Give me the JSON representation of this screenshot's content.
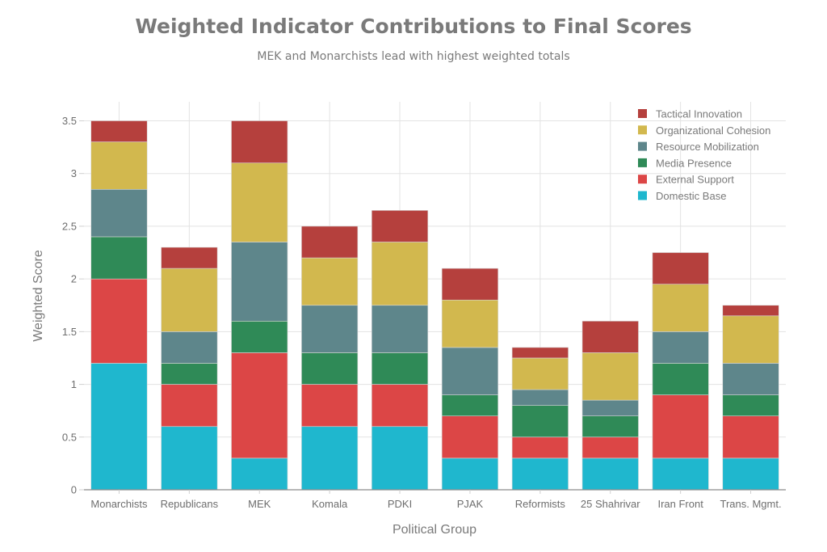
{
  "chart_data": {
    "type": "bar",
    "stacked": true,
    "title": "Weighted Indicator Contributions to Final Scores",
    "subtitle": "MEK and Monarchists lead with highest weighted totals",
    "xlabel": "Political Group",
    "ylabel": "Weighted Score",
    "ylim": [
      0,
      3.68
    ],
    "yticks": [
      0,
      0.5,
      1,
      1.5,
      2,
      2.5,
      3,
      3.5
    ],
    "ytick_labels": [
      "0",
      "0.5",
      "1",
      "1.5",
      "2",
      "2.5",
      "3",
      "3.5"
    ],
    "grid": true,
    "legend_position": "top-right",
    "categories": [
      "Monarchists",
      "Republicans",
      "MEK",
      "Komala",
      "PDKI",
      "PJAK",
      "Reformists",
      "25 Shahrivar",
      "Iran Front",
      "Trans. Mgmt."
    ],
    "series": [
      {
        "name": "Domestic Base",
        "color": "#1FB7CE",
        "values": [
          1.2,
          0.6,
          0.3,
          0.6,
          0.6,
          0.3,
          0.3,
          0.3,
          0.3,
          0.3
        ]
      },
      {
        "name": "External Support",
        "color": "#DC4646",
        "values": [
          0.8,
          0.4,
          1.0,
          0.4,
          0.4,
          0.4,
          0.2,
          0.2,
          0.6,
          0.4
        ]
      },
      {
        "name": "Media Presence",
        "color": "#2F8A57",
        "values": [
          0.4,
          0.2,
          0.3,
          0.3,
          0.3,
          0.2,
          0.3,
          0.2,
          0.3,
          0.2
        ]
      },
      {
        "name": "Resource Mobilization",
        "color": "#5E868B",
        "values": [
          0.45,
          0.3,
          0.75,
          0.45,
          0.45,
          0.45,
          0.15,
          0.15,
          0.3,
          0.3
        ]
      },
      {
        "name": "Organizational Cohesion",
        "color": "#D2B84E",
        "values": [
          0.45,
          0.6,
          0.75,
          0.45,
          0.6,
          0.45,
          0.3,
          0.45,
          0.45,
          0.45
        ]
      },
      {
        "name": "Tactical Innovation",
        "color": "#B5403D",
        "values": [
          0.2,
          0.2,
          0.4,
          0.3,
          0.3,
          0.3,
          0.1,
          0.3,
          0.3,
          0.1
        ]
      }
    ],
    "totals": [
      3.5,
      2.3,
      3.5,
      2.5,
      2.65,
      2.1,
      1.35,
      1.6,
      2.25,
      1.75
    ]
  }
}
